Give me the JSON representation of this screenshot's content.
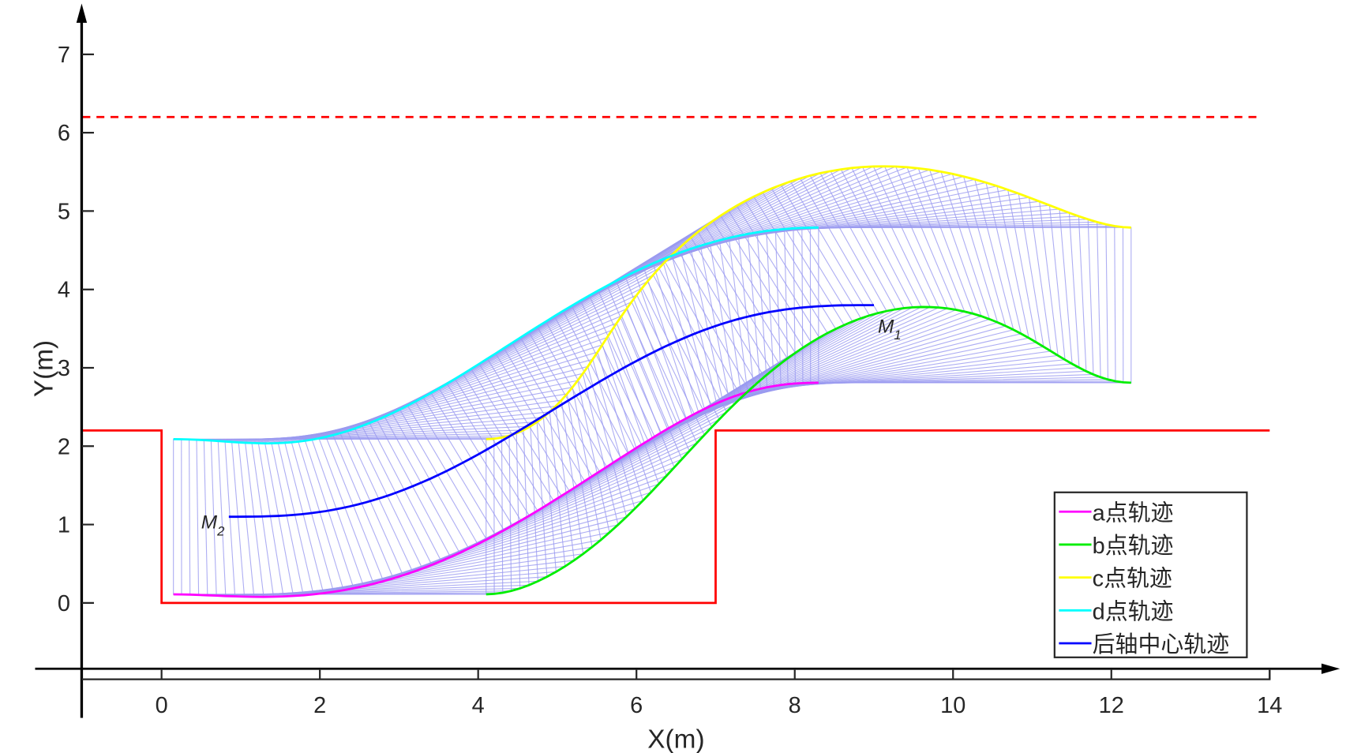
{
  "chart_data": {
    "type": "line",
    "title": "",
    "xlabel": "X(m)",
    "ylabel": "Y(m)",
    "xlim": [
      -1,
      14
    ],
    "ylim": [
      -0.97,
      7.5
    ],
    "xticks": [
      0,
      2,
      4,
      6,
      8,
      10,
      12,
      14
    ],
    "yticks": [
      0,
      1,
      2,
      3,
      4,
      5,
      6,
      7
    ],
    "grid": false,
    "legend_position": "bottom-right",
    "legend": [
      {
        "label": "a点轨迹",
        "color": "#ff00ff"
      },
      {
        "label": "b点轨迹",
        "color": "#00ee00"
      },
      {
        "label": "c点轨迹",
        "color": "#ffff00"
      },
      {
        "label": "d点轨迹",
        "color": "#00ffff"
      },
      {
        "label": "后轴中心轨迹",
        "color": "#0000ff"
      }
    ],
    "rear_axle_path": {
      "start": [
        0.85,
        1.1
      ],
      "end": [
        9.0,
        3.8
      ],
      "shape": "quintic"
    },
    "vehicle": {
      "rear_overhang": 0.7,
      "front_length": 3.25,
      "width": 1.98
    },
    "boundary": {
      "color": "#ff0000",
      "points": [
        [
          -1,
          2.2
        ],
        [
          0,
          2.2
        ],
        [
          0,
          0
        ],
        [
          7,
          0
        ],
        [
          7,
          2.2
        ],
        [
          14,
          2.2
        ]
      ]
    },
    "limit_line": {
      "y": 6.2,
      "x_range": [
        -1,
        13.9
      ],
      "color": "#ff0000",
      "style": "dashed"
    },
    "envelope_color": "#9a9af0",
    "annotations": [
      {
        "text": "M",
        "sub": "1",
        "at": [
          9.05,
          3.45
        ]
      },
      {
        "text": "M",
        "sub": "2",
        "at": [
          0.5,
          0.95
        ]
      }
    ]
  }
}
